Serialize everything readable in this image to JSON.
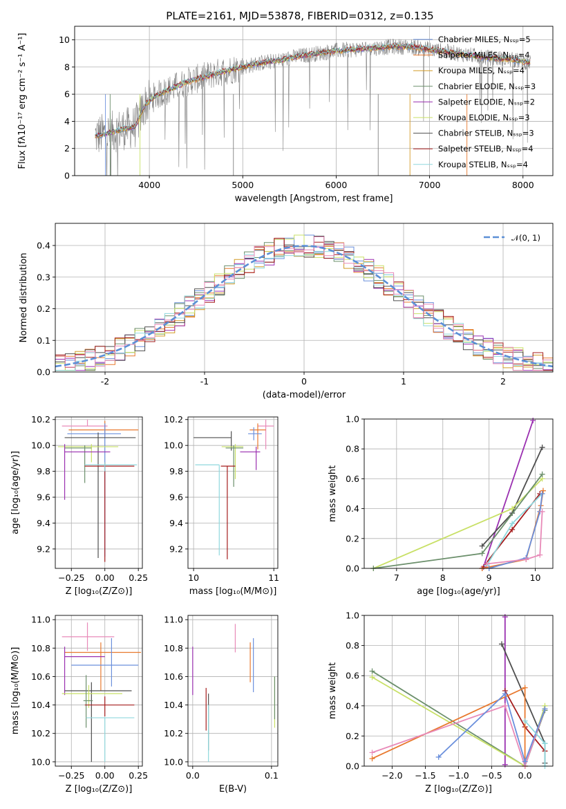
{
  "colors": {
    "c_miles": "#6a8fdc",
    "s_miles": "#e8782d",
    "k_miles": "#d29a26",
    "c_elodie": "#6b8f6b",
    "s_elodie": "#9a2fb0",
    "k_elodie": "#c8e066",
    "c_stelib": "#4e4e4e",
    "s_stelib": "#a51c1c",
    "k_stelib": "#8fd8dd",
    "pink": "#e88ab8",
    "gauss": "#5b8fd6",
    "gray_spec": "#808080"
  },
  "chart_data": [
    {
      "id": "spectrum",
      "type": "line",
      "title": "PLATE=2161, MJD=53878, FIBERID=0312, z=0.135",
      "xlabel": "wavelength [Angstrom, rest frame]",
      "ylabel": "Flux [fλ10⁻¹⁷ erg cm⁻² s⁻¹ A⁻¹]",
      "xlim": [
        3200,
        8320
      ],
      "ylim": [
        0,
        11
      ],
      "xticks": [
        4000,
        5000,
        6000,
        7000,
        8000
      ],
      "yticks": [
        0,
        2,
        4,
        6,
        8,
        10
      ],
      "legend_position": "upper-right",
      "series": [
        {
          "name": "Chabrier MILES, Nₛₛₚ=5",
          "color": "c_miles"
        },
        {
          "name": "Salpeter MILES, Nₛₛₚ=4",
          "color": "s_miles"
        },
        {
          "name": "Kroupa MILES, Nₛₛₚ=4",
          "color": "k_miles"
        },
        {
          "name": "Chabrier ELODIE, Nₛₛₚ=3",
          "color": "c_elodie"
        },
        {
          "name": "Salpeter ELODIE, Nₛₛₚ=2",
          "color": "s_elodie"
        },
        {
          "name": "Kroupa ELODIE, Nₛₛₚ=3",
          "color": "k_elodie"
        },
        {
          "name": "Chabrier STELIB, Nₛₛₚ=3",
          "color": "c_stelib"
        },
        {
          "name": "Salpeter STELIB, Nₛₛₚ=4",
          "color": "s_stelib"
        },
        {
          "name": "Kroupa STELIB, Nₛₛₚ=4",
          "color": "k_stelib"
        }
      ],
      "model_curve": {
        "x": [
          3400,
          3550,
          3700,
          3850,
          3950,
          4050,
          4200,
          4400,
          4600,
          4800,
          5000,
          5200,
          5400,
          5600,
          5800,
          6000,
          6200,
          6400,
          6600,
          6800,
          7000,
          7200,
          7400,
          7600,
          7800,
          8000,
          8100
        ],
        "y": [
          2.9,
          3.1,
          3.4,
          3.6,
          5.2,
          5.8,
          6.3,
          6.9,
          7.3,
          7.7,
          8.0,
          8.3,
          8.5,
          8.8,
          9.0,
          9.2,
          9.3,
          9.4,
          9.5,
          9.5,
          9.3,
          9.1,
          8.9,
          8.7,
          8.6,
          8.4,
          8.3
        ]
      }
    },
    {
      "id": "residual_hist",
      "type": "histogram",
      "xlabel": "(data-model)/error",
      "ylabel": "Normed distribution",
      "xlim": [
        -2.5,
        2.5
      ],
      "ylim": [
        0,
        0.47
      ],
      "xticks": [
        -2,
        -1,
        0,
        1,
        2
      ],
      "yticks": [
        0.0,
        0.1,
        0.2,
        0.3,
        0.4
      ],
      "legend": "𝒩(0, 1)",
      "legend_position": "upper-right",
      "reference": {
        "type": "gaussian",
        "mean": 0,
        "sigma": 1
      }
    },
    {
      "id": "age_vs_Z",
      "type": "errorbar",
      "xlabel": "Z [log₁₀(Z/Z⊙)]",
      "ylabel": "age  [log₁₀(age/yr)]",
      "xlim": [
        -0.37,
        0.28
      ],
      "ylim": [
        9.05,
        10.22
      ],
      "xticks": [
        -0.25,
        0.0,
        0.25
      ],
      "xticklabels": [
        "−0.25",
        "0.00",
        "0.25"
      ],
      "yticks": [
        9.2,
        9.4,
        9.6,
        9.8,
        10.0,
        10.2
      ],
      "points": [
        {
          "color": "pink",
          "x": -0.13,
          "xerr": [
            0.19,
            0.15
          ],
          "y": 10.15,
          "yerr": [
            0.0,
            0.05
          ]
        },
        {
          "color": "s_miles",
          "x": 0.0,
          "xerr": [
            0.27,
            0.25
          ],
          "y": 10.12,
          "yerr": [
            0.05,
            0.07
          ]
        },
        {
          "color": "c_miles",
          "x": 0.0,
          "xerr": [
            0.28,
            0.12
          ],
          "y": 10.09,
          "yerr": [
            0.95,
            0.08
          ]
        },
        {
          "color": "c_stelib",
          "x": -0.05,
          "xerr": [
            0.25,
            0.28
          ],
          "y": 10.06,
          "yerr": [
            0.93,
            0.04
          ]
        },
        {
          "color": "k_elodie",
          "x": -0.1,
          "xerr": [
            0.25,
            0.2
          ],
          "y": 9.99,
          "yerr": [
            0.12,
            0.02
          ]
        },
        {
          "color": "c_elodie",
          "x": -0.15,
          "xerr": [
            0.15,
            0.05
          ],
          "y": 9.98,
          "yerr": [
            0.27,
            0.02
          ]
        },
        {
          "color": "s_elodie",
          "x": -0.3,
          "xerr": [
            0.0,
            0.34
          ],
          "y": 9.95,
          "yerr": [
            0.37,
            0.06
          ]
        },
        {
          "color": "s_stelib",
          "x": 0.0,
          "xerr": [
            0.15,
            0.22
          ],
          "y": 9.84,
          "yerr": [
            0.74,
            0.03
          ]
        },
        {
          "color": "k_stelib",
          "x": 0.0,
          "xerr": [
            0.15,
            0.24
          ],
          "y": 9.85,
          "yerr": [
            0.05,
            0.02
          ]
        }
      ]
    },
    {
      "id": "age_vs_mass",
      "type": "errorbar",
      "xlabel": "mass [log₁₀(M/M⊙)]",
      "ylabel": "",
      "xlim": [
        9.93,
        11.05
      ],
      "ylim": [
        9.05,
        10.22
      ],
      "xticks": [
        10,
        11
      ],
      "yticks": [
        9.2,
        9.4,
        9.6,
        9.8,
        10.0,
        10.2
      ],
      "points": [
        {
          "color": "pink",
          "x": 10.9,
          "xerr": [
            0.1,
            0.1
          ],
          "y": 10.15,
          "yerr": [
            0.18,
            0.05
          ]
        },
        {
          "color": "s_miles",
          "x": 10.8,
          "xerr": [
            0.1,
            0.1
          ],
          "y": 10.12,
          "yerr": [
            0.15,
            0.05
          ]
        },
        {
          "color": "c_miles",
          "x": 10.75,
          "xerr": [
            0.07,
            0.1
          ],
          "y": 10.09,
          "yerr": [
            0.05,
            0.05
          ]
        },
        {
          "color": "c_stelib",
          "x": 10.47,
          "xerr": [
            0.47,
            0.0
          ],
          "y": 10.06,
          "yerr": [
            0.1,
            0.05
          ]
        },
        {
          "color": "k_elodie",
          "x": 10.52,
          "xerr": [
            0.17,
            0.1
          ],
          "y": 9.99,
          "yerr": [
            0.25,
            0.02
          ]
        },
        {
          "color": "c_elodie",
          "x": 10.5,
          "xerr": [
            0.1,
            0.12
          ],
          "y": 9.98,
          "yerr": [
            0.3,
            0.02
          ]
        },
        {
          "color": "s_elodie",
          "x": 10.78,
          "xerr": [
            0.2,
            0.05
          ],
          "y": 9.95,
          "yerr": [
            0.14,
            0.04
          ]
        },
        {
          "color": "s_stelib",
          "x": 10.42,
          "xerr": [
            0.08,
            0.1
          ],
          "y": 9.84,
          "yerr": [
            0.72,
            0.0
          ]
        },
        {
          "color": "k_stelib",
          "x": 10.32,
          "xerr": [
            0.3,
            0.0
          ],
          "y": 9.85,
          "yerr": [
            0.7,
            0.0
          ]
        }
      ]
    },
    {
      "id": "weight_vs_age",
      "type": "line",
      "xlabel": "age  [log₁₀(age/yr)]",
      "ylabel": "mass weight",
      "xlim": [
        6.3,
        10.38
      ],
      "ylim": [
        0,
        1
      ],
      "xticks": [
        7,
        8,
        9,
        10
      ],
      "yticks": [
        0.0,
        0.2,
        0.4,
        0.6,
        0.8,
        1.0
      ],
      "series": [
        {
          "color": "s_elodie",
          "x": [
            8.88,
            9.95
          ],
          "y": [
            0.01,
            0.99
          ]
        },
        {
          "color": "c_stelib",
          "x": [
            8.85,
            9.5,
            10.15
          ],
          "y": [
            0.15,
            0.37,
            0.81
          ]
        },
        {
          "color": "k_elodie",
          "x": [
            6.5,
            9.5,
            10.15
          ],
          "y": [
            0.0,
            0.4,
            0.6
          ]
        },
        {
          "color": "c_elodie",
          "x": [
            6.5,
            8.85,
            10.15
          ],
          "y": [
            0.0,
            0.1,
            0.63
          ]
        },
        {
          "color": "s_stelib",
          "x": [
            8.85,
            9.5,
            10.1
          ],
          "y": [
            0.0,
            0.26,
            0.5
          ]
        },
        {
          "color": "k_stelib",
          "x": [
            8.95,
            9.5,
            10.15
          ],
          "y": [
            0.02,
            0.3,
            0.5
          ]
        },
        {
          "color": "s_miles",
          "x": [
            8.85,
            9.8,
            10.12,
            10.17
          ],
          "y": [
            0.0,
            0.06,
            0.42,
            0.52
          ]
        },
        {
          "color": "c_miles",
          "x": [
            9.0,
            9.8,
            10.1,
            10.15
          ],
          "y": [
            0.0,
            0.07,
            0.38,
            0.5
          ]
        },
        {
          "color": "pink",
          "x": [
            8.95,
            9.8,
            10.1,
            10.15
          ],
          "y": [
            0.03,
            0.06,
            0.09,
            0.38
          ]
        }
      ]
    },
    {
      "id": "mass_vs_Z",
      "type": "errorbar",
      "xlabel": "Z [log₁₀(Z/Z⊙)]",
      "ylabel": "mass [log₁₀(M/M⊙)]",
      "xlim": [
        -0.37,
        0.28
      ],
      "ylim": [
        9.97,
        11.03
      ],
      "xticks": [
        -0.25,
        0.0,
        0.25
      ],
      "xticklabels": [
        "−0.25",
        "0.00",
        "0.25"
      ],
      "yticks": [
        10.0,
        10.2,
        10.4,
        10.6,
        10.8,
        11.0
      ],
      "points": [
        {
          "color": "pink",
          "x": -0.13,
          "xerr": [
            0.19,
            0.2
          ],
          "y": 10.88,
          "yerr": [
            0.1,
            0.1
          ]
        },
        {
          "color": "s_miles",
          "x": -0.03,
          "xerr": [
            0.27,
            0.3
          ],
          "y": 10.77,
          "yerr": [
            0.27,
            0.07
          ]
        },
        {
          "color": "s_elodie",
          "x": -0.3,
          "xerr": [
            0.0,
            0.3
          ],
          "y": 10.74,
          "yerr": [
            0.27,
            0.07
          ]
        },
        {
          "color": "c_miles",
          "x": 0.05,
          "xerr": [
            0.3,
            0.2
          ],
          "y": 10.68,
          "yerr": [
            0.15,
            0.19
          ]
        },
        {
          "color": "c_stelib",
          "x": -0.1,
          "xerr": [
            0.2,
            0.3
          ],
          "y": 10.5,
          "yerr": [
            0.5,
            0.06
          ]
        },
        {
          "color": "k_elodie",
          "x": -0.12,
          "xerr": [
            0.2,
            0.25
          ],
          "y": 10.48,
          "yerr": [
            0.1,
            0.06
          ]
        },
        {
          "color": "c_elodie",
          "x": -0.14,
          "xerr": [
            0.02,
            0.05
          ],
          "y": 10.43,
          "yerr": [
            0.19,
            0.18
          ]
        },
        {
          "color": "s_stelib",
          "x": 0.0,
          "xerr": [
            0.15,
            0.22
          ],
          "y": 10.4,
          "yerr": [
            0.08,
            0.06
          ]
        },
        {
          "color": "k_stelib",
          "x": 0.0,
          "xerr": [
            0.14,
            0.22
          ],
          "y": 10.31,
          "yerr": [
            0.31,
            0.0
          ]
        }
      ]
    },
    {
      "id": "mass_vs_ebv",
      "type": "errorbar",
      "xlabel": "E(B-V)",
      "ylabel": "",
      "xlim": [
        -0.006,
        0.108
      ],
      "ylim": [
        9.97,
        11.03
      ],
      "xticks": [
        0.0,
        0.1
      ],
      "xticklabels": [
        "0.0",
        "0.1"
      ],
      "yticks": [
        10.0,
        10.2,
        10.4,
        10.6,
        10.8,
        11.0
      ],
      "points": [
        {
          "color": "pink",
          "x": 0.054,
          "xerr": [
            0,
            0
          ],
          "y": 10.87,
          "yerr": [
            0.1,
            0.1
          ]
        },
        {
          "color": "s_miles",
          "x": 0.073,
          "xerr": [
            0,
            0
          ],
          "y": 10.7,
          "yerr": [
            0.14,
            0.14
          ]
        },
        {
          "color": "c_miles",
          "x": 0.077,
          "xerr": [
            0,
            0
          ],
          "y": 10.68,
          "yerr": [
            0.19,
            0.19
          ]
        },
        {
          "color": "s_elodie",
          "x": 0.0,
          "xerr": [
            0,
            0
          ],
          "y": 10.64,
          "yerr": [
            0.17,
            0.17
          ]
        },
        {
          "color": "k_elodie",
          "x": 0.104,
          "xerr": [
            0,
            0
          ],
          "y": 10.42,
          "yerr": [
            0.18,
            0.18
          ]
        },
        {
          "color": "c_elodie",
          "x": 0.104,
          "xerr": [
            0,
            0
          ],
          "y": 10.45,
          "yerr": [
            0.15,
            0.15
          ]
        },
        {
          "color": "s_stelib",
          "x": 0.017,
          "xerr": [
            0,
            0
          ],
          "y": 10.37,
          "yerr": [
            0.15,
            0.15
          ]
        },
        {
          "color": "c_stelib",
          "x": 0.02,
          "xerr": [
            0,
            0
          ],
          "y": 10.28,
          "yerr": [
            0.2,
            0.2
          ]
        },
        {
          "color": "k_stelib",
          "x": 0.02,
          "xerr": [
            0,
            0
          ],
          "y": 10.2,
          "yerr": [
            0.2,
            0.2
          ]
        }
      ]
    },
    {
      "id": "weight_vs_Z",
      "type": "line",
      "xlabel": "Z [log₁₀(Z/Z⊙)]",
      "ylabel": "mass weight",
      "xlim": [
        -2.42,
        0.42
      ],
      "ylim": [
        0,
        1
      ],
      "xticks": [
        -2.0,
        -1.5,
        -1.0,
        -0.5,
        0.0
      ],
      "xticklabels": [
        "−2.0",
        "−1.5",
        "−1.0",
        "−0.5",
        "0.0"
      ],
      "yticks": [
        0.0,
        0.2,
        0.4,
        0.6,
        0.8,
        1.0
      ],
      "series": [
        {
          "color": "s_elodie",
          "x": [
            -0.3,
            -0.3
          ],
          "y": [
            0.01,
            0.99
          ]
        },
        {
          "color": "c_elodie",
          "x": [
            -2.3,
            0.0,
            0.3
          ],
          "y": [
            0.63,
            0.0,
            0.37
          ]
        },
        {
          "color": "k_elodie",
          "x": [
            -2.3,
            0.0,
            0.3
          ],
          "y": [
            0.59,
            0.0,
            0.4
          ]
        },
        {
          "color": "c_stelib",
          "x": [
            -0.35,
            0.3,
            0.3
          ],
          "y": [
            0.81,
            0.15,
            0.02
          ]
        },
        {
          "color": "s_stelib",
          "x": [
            -0.3,
            0.0,
            0.3
          ],
          "y": [
            0.5,
            0.26,
            0.1
          ]
        },
        {
          "color": "s_miles",
          "x": [
            -2.3,
            0.0,
            0.0
          ],
          "y": [
            0.05,
            0.52,
            0.0
          ]
        },
        {
          "color": "pink",
          "x": [
            -2.3,
            -0.3,
            0.0,
            0.3
          ],
          "y": [
            0.09,
            0.4,
            0.0,
            0.38
          ]
        },
        {
          "color": "c_miles",
          "x": [
            -1.3,
            -0.3,
            0.0,
            0.3
          ],
          "y": [
            0.06,
            0.48,
            0.03,
            0.38
          ]
        },
        {
          "color": "k_stelib",
          "x": [
            0.0,
            0.3,
            0.3
          ],
          "y": [
            0.3,
            0.15,
            0.0
          ]
        }
      ]
    }
  ]
}
